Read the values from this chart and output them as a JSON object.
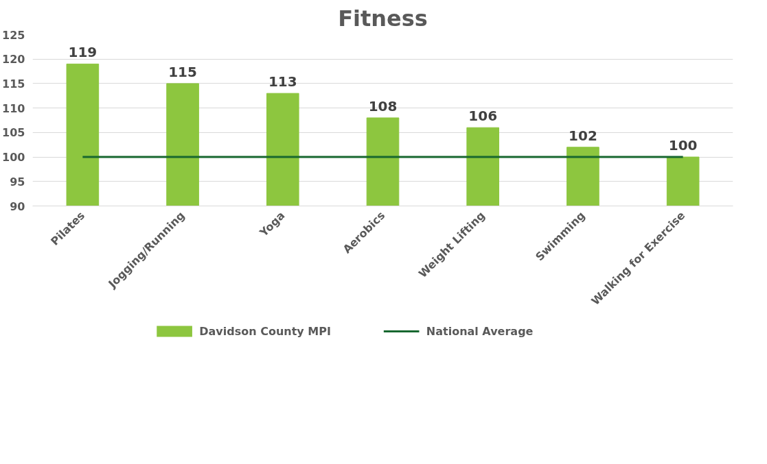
{
  "chart_data": {
    "type": "bar",
    "title": "Fitness",
    "categories": [
      "Pilates",
      "Jogging/Running",
      "Yoga",
      "Aerobics",
      "Weight Lifting",
      "Swimming",
      "Walking for Exercise"
    ],
    "series": [
      {
        "name": "Davidson County MPI",
        "color": "#8dc63f",
        "values": [
          119,
          115,
          113,
          108,
          106,
          102,
          100
        ],
        "value_labels": [
          "119",
          "115",
          "113",
          "108",
          "106",
          "102",
          "100"
        ]
      },
      {
        "name": "National Average",
        "type": "line",
        "color": "#17672f",
        "values": [
          100,
          100,
          100,
          100,
          100,
          100,
          100
        ]
      }
    ],
    "ylim": [
      90,
      125
    ],
    "yticks": [
      90,
      95,
      100,
      105,
      110,
      115,
      120,
      125
    ],
    "grid": "y",
    "legend": "bottom"
  }
}
